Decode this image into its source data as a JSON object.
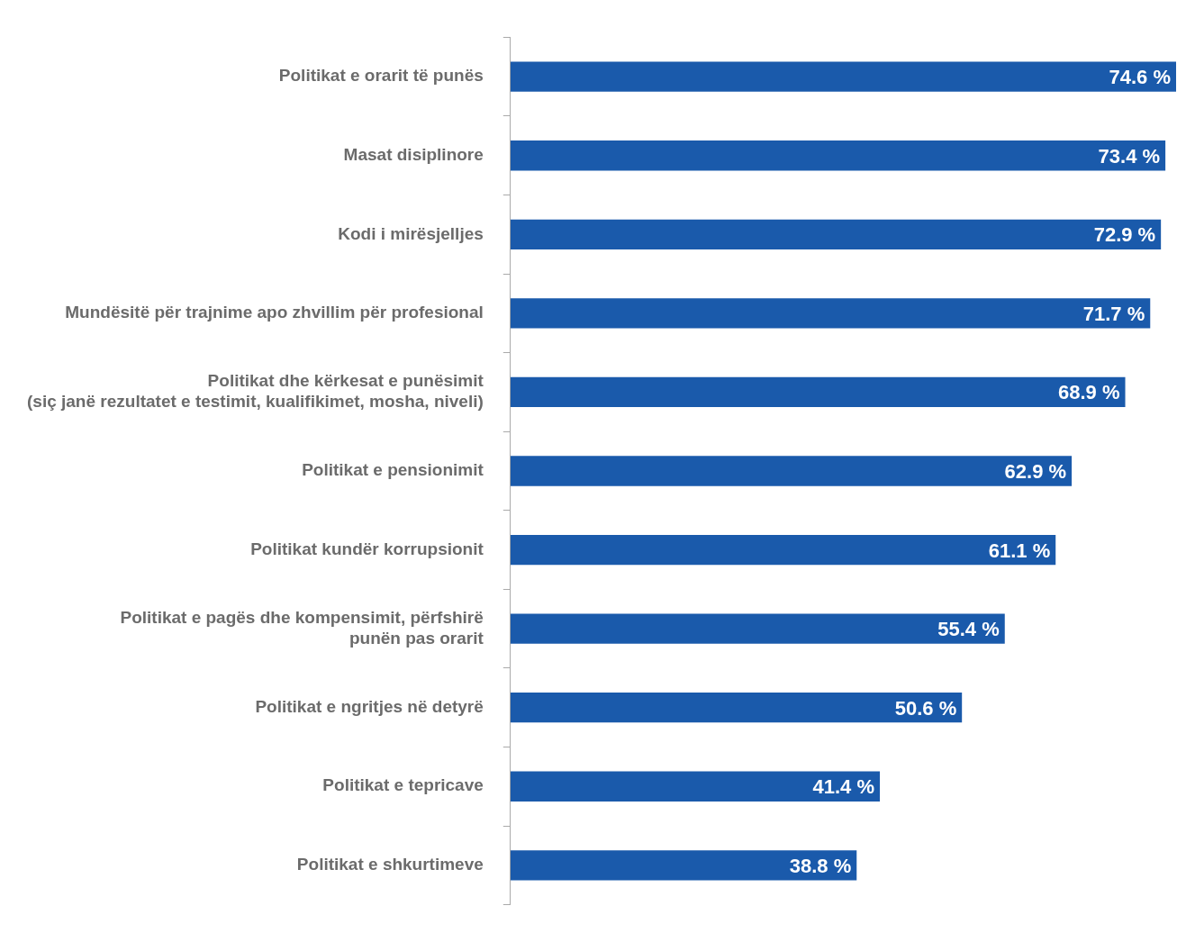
{
  "chart_data": {
    "type": "bar",
    "orientation": "horizontal",
    "color": "#1a5aab",
    "grid": false,
    "legend": false,
    "tick_labels": "y",
    "categories": [
      "Politikat e orarit të punës",
      "Masat disiplinore",
      "Kodi i mirësjelljes",
      "Mundësitë për trajnime apo zhvillim për profesional",
      "Politikat dhe kërkesat e punësimit\n(siç janë rezultatet e testimit, kualifikimet, mosha, niveli)",
      "Politikat e pensionimit",
      "Politikat kundër korrupsionit",
      "Politikat e pagës dhe kompensimit, përfshirë\npunën pas orarit",
      "Politikat e ngritjes në detyrë",
      "Politikat e tepricave",
      "Politikat e shkurtimeve"
    ],
    "values": [
      74.6,
      73.4,
      72.9,
      71.7,
      68.9,
      62.9,
      61.1,
      55.4,
      50.6,
      41.4,
      38.8
    ],
    "value_labels": [
      "74.6 %",
      "73.4 %",
      "72.9 %",
      "71.7 %",
      "68.9 %",
      "62.9 %",
      "61.1 %",
      "55.4 %",
      "50.6 %",
      "41.4 %",
      "38.8 %"
    ]
  }
}
